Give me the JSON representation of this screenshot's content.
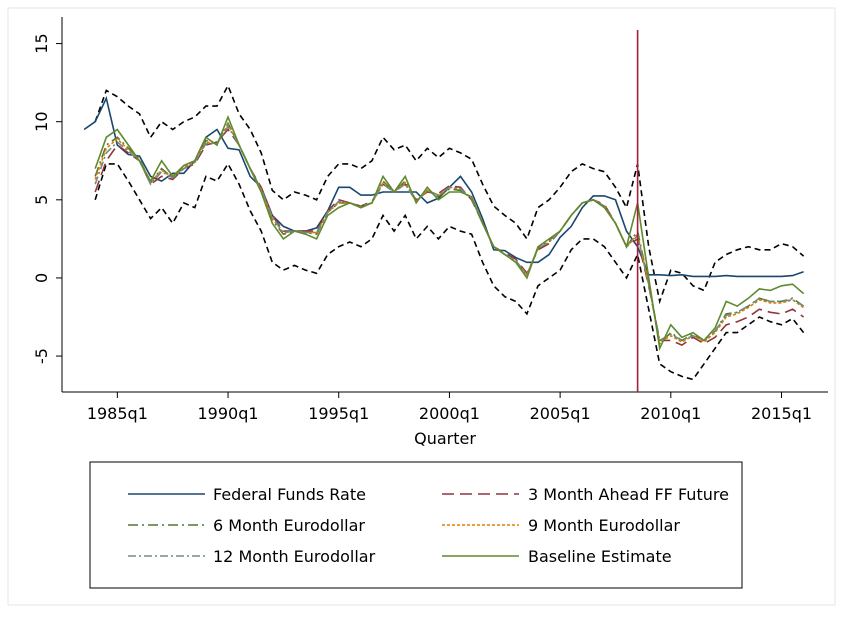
{
  "chart_data": {
    "type": "line",
    "x_label": "Quarter",
    "x": [
      1983.5,
      1984,
      1984.5,
      1985,
      1985.5,
      1986,
      1986.5,
      1987,
      1987.5,
      1988,
      1988.5,
      1989,
      1989.5,
      1990,
      1990.5,
      1991,
      1991.5,
      1992,
      1992.5,
      1993,
      1993.5,
      1994,
      1994.5,
      1995,
      1995.5,
      1996,
      1996.5,
      1997,
      1997.5,
      1998,
      1998.5,
      1999,
      1999.5,
      2000,
      2000.5,
      2001,
      2001.5,
      2002,
      2002.5,
      2003,
      2003.5,
      2004,
      2004.5,
      2005,
      2005.5,
      2006,
      2006.5,
      2007,
      2007.5,
      2008,
      2008.5,
      2009,
      2009.5,
      2010,
      2010.5,
      2011,
      2011.5,
      2012,
      2012.5,
      2013,
      2013.5,
      2014,
      2014.5,
      2015,
      2015.5,
      2016
    ],
    "xlim": [
      1982.5,
      2017.1
    ],
    "xticks": [
      {
        "value": 1985,
        "label": "1985q1"
      },
      {
        "value": 1990,
        "label": "1990q1"
      },
      {
        "value": 1995,
        "label": "1995q1"
      },
      {
        "value": 2000,
        "label": "2000q1"
      },
      {
        "value": 2005,
        "label": "2005q1"
      },
      {
        "value": 2010,
        "label": "2010q1"
      },
      {
        "value": 2015,
        "label": "2015q1"
      }
    ],
    "ylim": [
      -7.3,
      16.7
    ],
    "yticks": [
      -5,
      0,
      5,
      10,
      15
    ],
    "vline": {
      "x": 2008.5,
      "color": "#a3203a"
    },
    "series": [
      {
        "color": "#000000",
        "dash": "6 4",
        "values": [
          null,
          10.0,
          12.0,
          11.6,
          11.0,
          10.5,
          9.0,
          10.0,
          9.5,
          10.0,
          10.3,
          11.0,
          11.0,
          12.3,
          10.5,
          9.5,
          8.0,
          5.6,
          5.0,
          5.5,
          5.3,
          5.0,
          6.5,
          7.3,
          7.3,
          7.0,
          7.5,
          9.0,
          8.2,
          8.5,
          7.5,
          8.3,
          7.7,
          8.3,
          8.0,
          7.6,
          6.0,
          4.6,
          4.0,
          3.5,
          2.5,
          4.5,
          5.0,
          5.8,
          6.8,
          7.3,
          7.0,
          6.8,
          5.8,
          4.5,
          7.3,
          2.0,
          -1.5,
          0.5,
          0.3,
          -0.5,
          -0.8,
          1.0,
          1.5,
          1.8,
          2.0,
          1.8,
          1.8,
          2.2,
          2.0,
          1.4
        ]
      },
      {
        "color": "#000000",
        "dash": "6 4",
        "values": [
          null,
          5.0,
          7.3,
          7.3,
          6.2,
          5.0,
          3.8,
          4.5,
          3.5,
          4.8,
          4.5,
          6.5,
          6.2,
          7.3,
          6.0,
          4.3,
          3.0,
          1.0,
          0.5,
          0.8,
          0.5,
          0.3,
          1.5,
          2.0,
          2.3,
          2.0,
          2.5,
          4.0,
          3.0,
          4.0,
          2.5,
          3.3,
          2.5,
          3.3,
          3.0,
          2.8,
          1.0,
          -0.5,
          -1.2,
          -1.5,
          -2.3,
          -0.5,
          0.0,
          0.5,
          1.8,
          2.5,
          2.5,
          2.0,
          1.0,
          0.0,
          1.5,
          -2.0,
          -5.5,
          -6.0,
          -6.3,
          -6.5,
          -5.5,
          -4.5,
          -3.5,
          -3.5,
          -3.0,
          -2.5,
          -2.8,
          -3.0,
          -2.6,
          -3.5
        ]
      },
      {
        "name": "Federal Funds Rate",
        "color": "#1a476f",
        "dash": "none",
        "values": [
          9.5,
          10.0,
          11.5,
          8.5,
          7.9,
          7.8,
          6.5,
          6.2,
          6.7,
          6.7,
          7.5,
          9.0,
          9.5,
          8.3,
          8.2,
          6.5,
          5.8,
          4.0,
          3.3,
          3.0,
          3.0,
          3.2,
          4.3,
          5.8,
          5.8,
          5.3,
          5.3,
          5.5,
          5.5,
          5.5,
          5.5,
          4.8,
          5.1,
          5.8,
          6.5,
          5.5,
          3.8,
          1.8,
          1.75,
          1.3,
          1.0,
          1.0,
          1.5,
          2.6,
          3.3,
          4.5,
          5.25,
          5.25,
          5.0,
          3.0,
          2.0,
          0.2,
          0.2,
          0.15,
          0.2,
          0.1,
          0.1,
          0.1,
          0.15,
          0.1,
          0.1,
          0.1,
          0.1,
          0.1,
          0.15,
          0.4
        ]
      },
      {
        "name": "3 Month Ahead FF Future",
        "color": "#90353b",
        "dash": "12 6",
        "values": [
          null,
          5.5,
          7.5,
          8.5,
          8.0,
          7.5,
          6.0,
          6.5,
          6.3,
          7.0,
          7.3,
          8.5,
          8.7,
          9.5,
          8.5,
          7.0,
          5.8,
          4.0,
          3.0,
          3.0,
          3.0,
          3.0,
          4.3,
          5.0,
          4.8,
          4.6,
          4.9,
          6.0,
          5.6,
          6.0,
          5.0,
          5.5,
          5.4,
          5.9,
          5.8,
          5.0,
          3.5,
          2.0,
          1.6,
          1.2,
          0.3,
          1.8,
          2.2,
          3.0,
          4.0,
          4.8,
          5.0,
          4.7,
          3.5,
          2.0,
          2.5,
          -0.5,
          -4.0,
          -4.0,
          -4.3,
          -3.8,
          -4.2,
          -3.8,
          -3.0,
          -2.8,
          -2.5,
          -2.0,
          -2.2,
          -2.3,
          -2.0,
          -2.5
        ]
      },
      {
        "name": "6 Month Eurodollar",
        "color": "#55752f",
        "dash": "10 4 2 4",
        "values": [
          null,
          6.5,
          8.5,
          9.0,
          8.3,
          7.6,
          6.1,
          7.0,
          6.4,
          7.1,
          7.4,
          8.8,
          8.6,
          9.9,
          8.5,
          7.0,
          5.6,
          3.7,
          2.8,
          3.0,
          2.9,
          2.8,
          4.2,
          4.8,
          4.8,
          4.5,
          4.8,
          6.2,
          5.5,
          6.2,
          4.9,
          5.6,
          5.2,
          5.7,
          5.6,
          5.1,
          3.5,
          2.0,
          1.5,
          1.1,
          0.2,
          1.9,
          2.4,
          3.0,
          4.0,
          4.8,
          5.0,
          4.6,
          3.5,
          2.0,
          3.0,
          -0.3,
          -4.2,
          -3.5,
          -4.0,
          -3.6,
          -4.0,
          -3.4,
          -2.3,
          -2.2,
          -1.8,
          -1.3,
          -1.5,
          -1.5,
          -1.3,
          -1.8
        ]
      },
      {
        "name": "9 Month Eurodollar",
        "color": "#e37e00",
        "dash": "3 2",
        "values": [
          null,
          6.3,
          8.3,
          8.9,
          8.2,
          7.5,
          6.1,
          6.9,
          6.4,
          7.1,
          7.4,
          8.7,
          8.6,
          9.8,
          8.5,
          7.0,
          5.6,
          3.8,
          2.9,
          3.0,
          2.9,
          2.9,
          4.2,
          4.8,
          4.8,
          4.5,
          4.8,
          6.1,
          5.5,
          6.1,
          4.9,
          5.6,
          5.3,
          5.8,
          5.7,
          5.1,
          3.5,
          2.0,
          1.5,
          1.1,
          0.2,
          1.9,
          2.3,
          3.0,
          4.0,
          4.8,
          5.0,
          4.6,
          3.5,
          2.0,
          2.8,
          -0.4,
          -4.1,
          -3.7,
          -4.1,
          -3.7,
          -4.1,
          -3.5,
          -2.5,
          -2.3,
          -1.9,
          -1.4,
          -1.6,
          -1.6,
          -1.4,
          -1.9
        ]
      },
      {
        "name": "12 Month Eurodollar",
        "color": "#6e8e84",
        "dash": "8 3 2 3",
        "values": [
          null,
          6.0,
          8.0,
          8.7,
          8.1,
          7.5,
          6.0,
          6.8,
          6.4,
          7.0,
          7.4,
          8.6,
          8.6,
          9.7,
          8.5,
          7.0,
          5.7,
          3.9,
          2.9,
          3.0,
          2.9,
          2.9,
          4.2,
          4.9,
          4.8,
          4.6,
          4.8,
          6.0,
          5.5,
          6.0,
          4.9,
          5.6,
          5.3,
          5.8,
          5.7,
          5.1,
          3.5,
          2.0,
          1.5,
          1.1,
          0.2,
          1.9,
          2.3,
          3.0,
          4.0,
          4.8,
          5.0,
          4.6,
          3.5,
          2.0,
          2.7,
          -0.4,
          -4.0,
          -3.6,
          -4.0,
          -3.7,
          -4.0,
          -3.4,
          -2.4,
          -2.2,
          -1.8,
          -1.3,
          -1.5,
          -1.5,
          -1.4,
          -1.8
        ]
      },
      {
        "name": "Baseline Estimate",
        "color": "#5f8a2e",
        "dash": "none",
        "values": [
          null,
          7.0,
          9.0,
          9.5,
          8.5,
          7.5,
          6.2,
          7.5,
          6.5,
          7.2,
          7.5,
          9.0,
          8.5,
          10.3,
          8.5,
          7.0,
          5.5,
          3.5,
          2.5,
          3.0,
          2.8,
          2.5,
          4.0,
          4.5,
          4.8,
          4.5,
          4.8,
          6.5,
          5.5,
          6.5,
          4.8,
          5.8,
          5.0,
          5.5,
          5.5,
          5.2,
          3.5,
          2.0,
          1.5,
          1.0,
          0.0,
          2.0,
          2.5,
          3.0,
          4.0,
          4.8,
          5.0,
          4.5,
          3.5,
          2.0,
          4.8,
          0.0,
          -4.5,
          -3.0,
          -3.8,
          -3.5,
          -4.0,
          -3.2,
          -1.5,
          -1.8,
          -1.3,
          -0.7,
          -0.8,
          -0.5,
          -0.4,
          -1.0
        ]
      }
    ]
  }
}
